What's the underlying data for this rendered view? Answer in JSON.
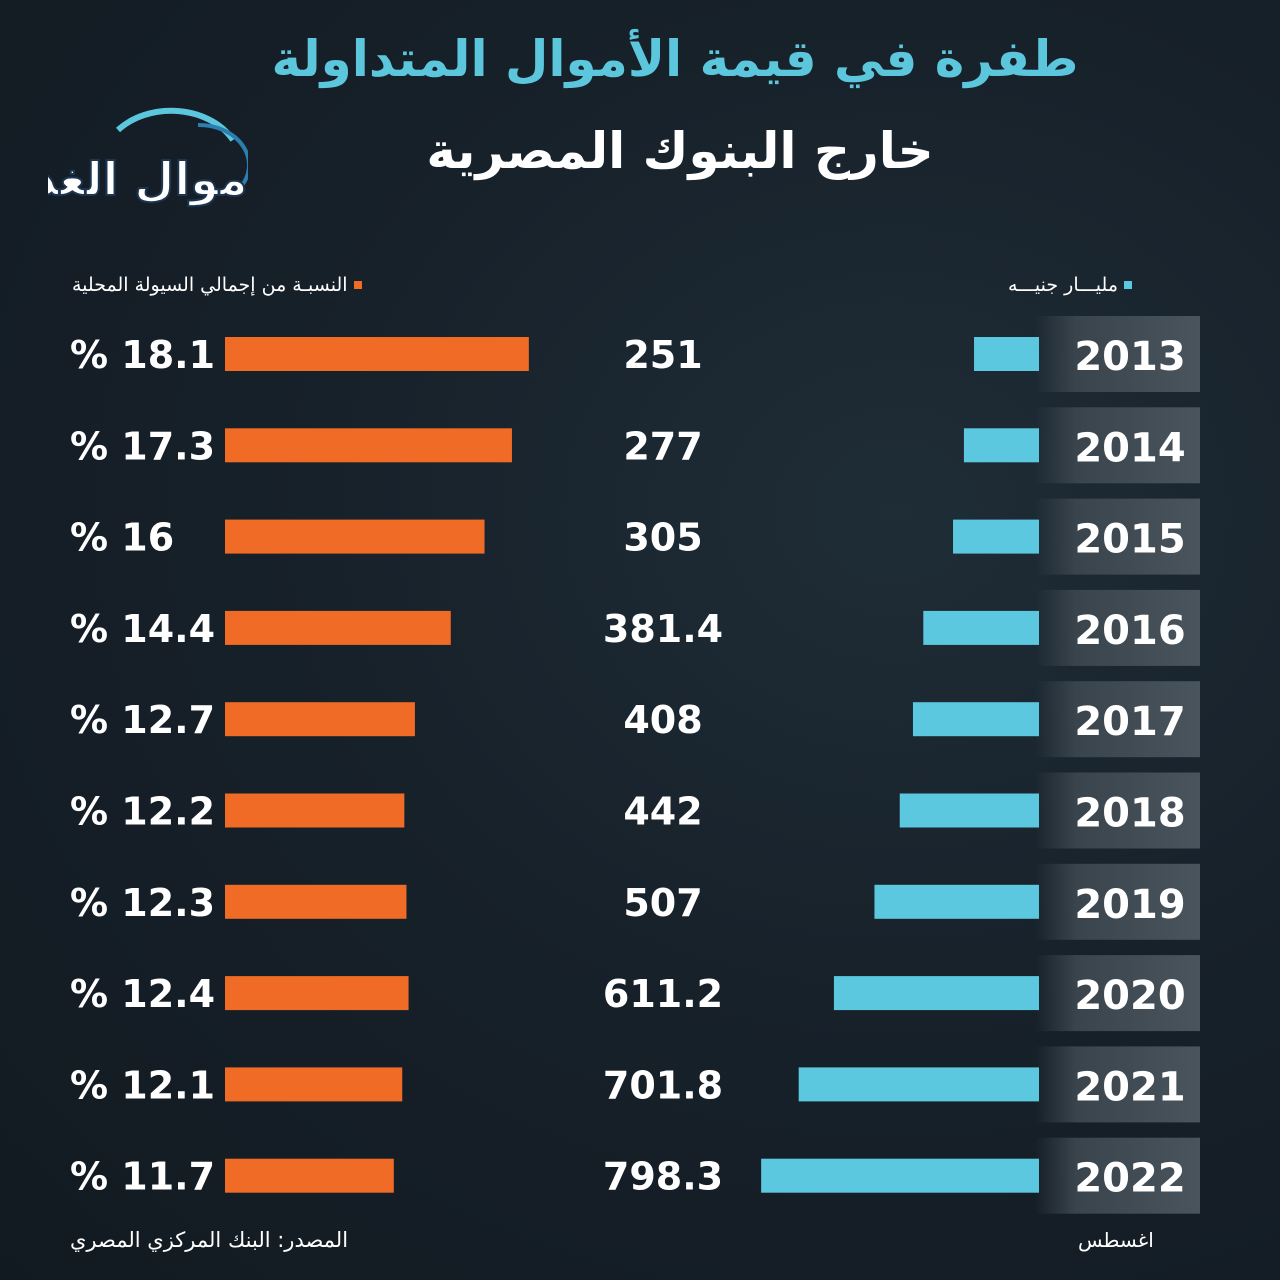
{
  "header": {
    "title_line1": "طفرة في قيمة الأموال المتداولة",
    "title_line2": "خارج البنوك المصرية",
    "logo_text": "أموال الغد"
  },
  "legend": {
    "value_label": "مليـــار جنيـــه",
    "percent_label": "النسبـة من إجمالي السيولة المحلية"
  },
  "footer": {
    "source": "المصدر: البنك المركزي المصري",
    "note": "اغسطس"
  },
  "colors": {
    "value_bar": "#5cc8e0",
    "percent_bar": "#f06b25",
    "title_accent": "#5cc6dc",
    "year_box": "#3a444c"
  },
  "chart_data": {
    "type": "bar",
    "categories": [
      "2013",
      "2014",
      "2015",
      "2016",
      "2017",
      "2018",
      "2019",
      "2020",
      "2021",
      "2022"
    ],
    "series": [
      {
        "name": "مليـــار جنيـــه",
        "values": [
          251,
          277,
          305,
          381.4,
          408,
          442,
          507,
          611.2,
          701.8,
          798.3
        ],
        "labels": [
          "251",
          "277",
          "305",
          "381.4",
          "408",
          "442",
          "507",
          "611.2",
          "701.8",
          "798.3"
        ]
      },
      {
        "name": "النسبـة من إجمالي السيولة المحلية",
        "values": [
          18.1,
          17.3,
          16,
          14.4,
          12.7,
          12.2,
          12.3,
          12.4,
          12.1,
          11.7
        ],
        "labels": [
          "% 18.1",
          "% 17.3",
          "%  16",
          "% 14.4",
          "% 12.7",
          "% 12.2",
          "% 12.3",
          "% 12.4",
          "% 12.1",
          "% 11.7"
        ]
      }
    ]
  }
}
